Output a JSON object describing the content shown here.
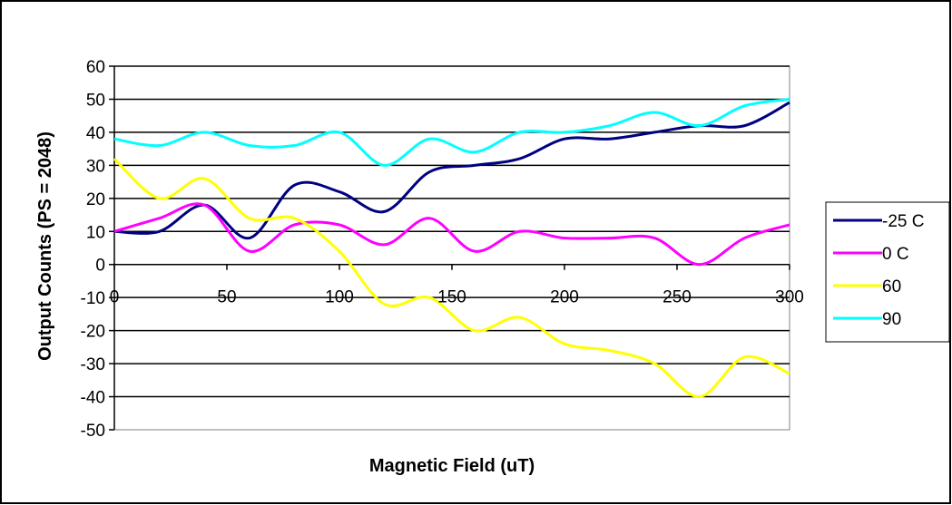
{
  "chart_data": {
    "type": "line",
    "title": "",
    "xlabel": "Magnetic Field (uT)",
    "ylabel": "Output Counts (PS = 2048)",
    "xlim": [
      0,
      300
    ],
    "ylim": [
      -50,
      60
    ],
    "x_ticks": [
      0,
      50,
      100,
      150,
      200,
      250,
      300
    ],
    "y_ticks": [
      60,
      50,
      40,
      30,
      20,
      10,
      0,
      -10,
      -20,
      -30,
      -40,
      -50
    ],
    "grid": true,
    "legend_position": "right",
    "x": [
      0,
      20,
      40,
      60,
      80,
      100,
      120,
      140,
      160,
      180,
      200,
      220,
      240,
      260,
      280,
      300
    ],
    "series": [
      {
        "name": "-25 C",
        "color": "#000080",
        "values": [
          10,
          10,
          18,
          8,
          24,
          22,
          16,
          28,
          30,
          32,
          38,
          38,
          40,
          42,
          42,
          49
        ]
      },
      {
        "name": "0 C",
        "color": "#ff00ff",
        "values": [
          10,
          14,
          18,
          4,
          12,
          12,
          6,
          14,
          4,
          10,
          8,
          8,
          8,
          0,
          8,
          12
        ]
      },
      {
        "name": "60",
        "color": "#ffff00",
        "values": [
          32,
          20,
          26,
          14,
          14,
          4,
          -12,
          -10,
          -20,
          -16,
          -24,
          -26,
          -30,
          -40,
          -28,
          -33
        ]
      },
      {
        "name": "90",
        "color": "#00ffff",
        "values": [
          38,
          36,
          40,
          36,
          36,
          40,
          30,
          38,
          34,
          40,
          40,
          42,
          46,
          42,
          48,
          50
        ]
      }
    ]
  }
}
